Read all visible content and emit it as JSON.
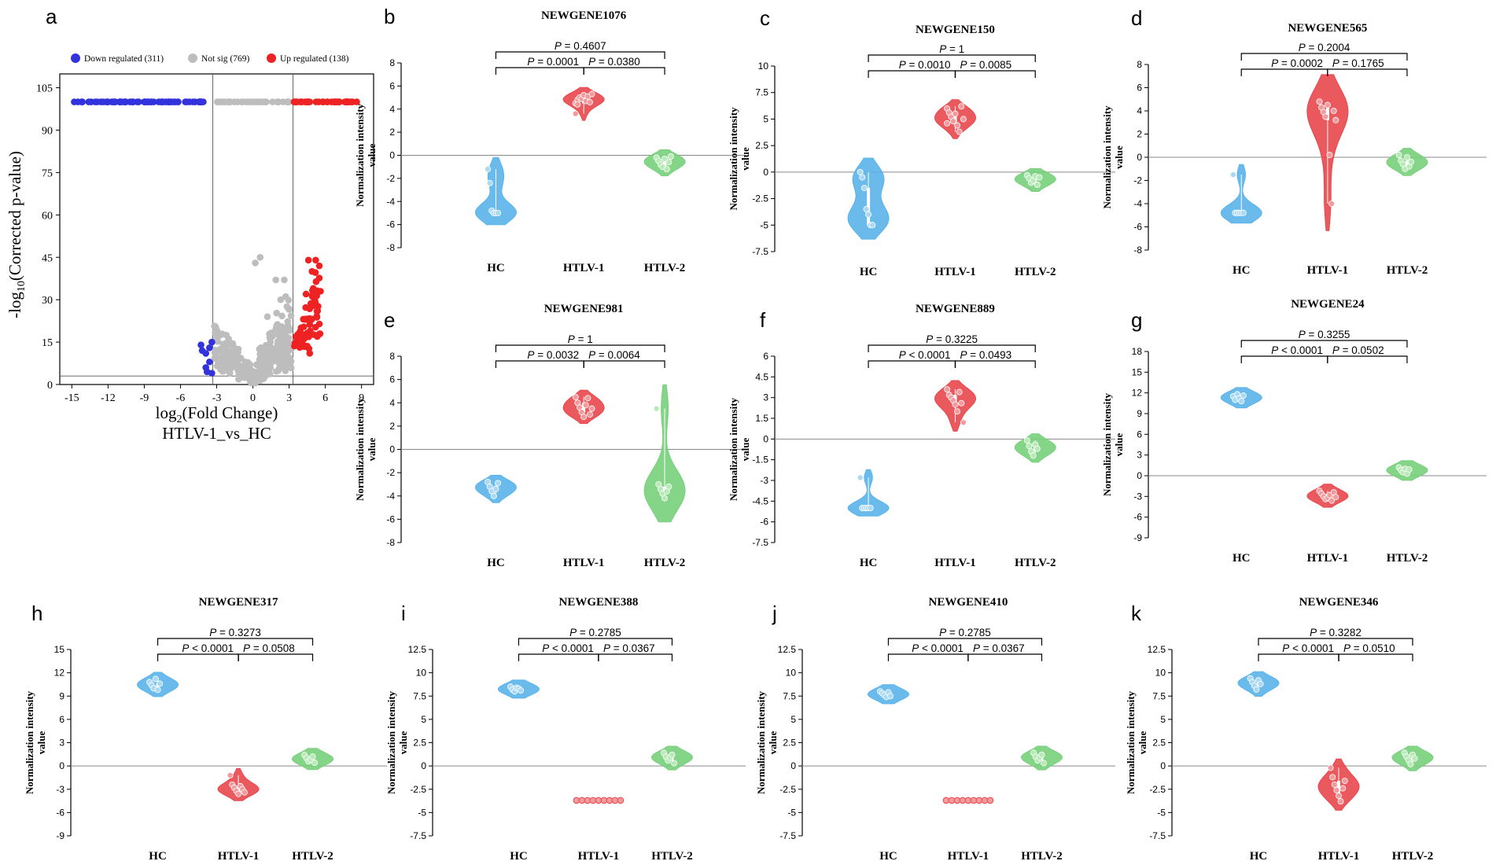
{
  "figure": {
    "volcano": {
      "panel_letter": "a",
      "chart_data": {
        "type": "scatter",
        "title": "HTLV-1_vs_HC",
        "xlabel": "log2(Fold Change)",
        "ylabel": "-log10(Corrected p-value)",
        "xlim": [
          -16,
          10
        ],
        "ylim": [
          0,
          106
        ],
        "xticks": [
          "-15",
          "-12",
          "-9",
          "-6",
          "-3",
          "0",
          "3",
          "6",
          "9"
        ],
        "yticks": [
          "0",
          "15",
          "30",
          "45",
          "60",
          "75",
          "90",
          "105"
        ],
        "fc_threshold": [
          -3.32,
          3.32
        ],
        "p_threshold": 3,
        "legend": [
          {
            "label": "Down regulated (311)",
            "color": "#3333dd"
          },
          {
            "label": "Not sig (769)",
            "color": "#bdbdbd"
          },
          {
            "label": "Up regulated (138)",
            "color": "#ee2222"
          }
        ]
      }
    },
    "violin_axis_labels": {
      "ylabel_line1": "Normalization intensity",
      "ylabel_line2": "value",
      "groups": [
        "HC",
        "HTLV-1",
        "HTLV-2"
      ]
    },
    "colors": {
      "HC": {
        "fill": "#5ab4ea",
        "point": "#a9d9f5"
      },
      "HTLV-1": {
        "fill": "#e8474c",
        "point": "#f49a9d"
      },
      "HTLV-2": {
        "fill": "#78d07c",
        "point": "#b7ebb6"
      }
    },
    "panels": [
      {
        "letter": "b",
        "chart_data": {
          "type": "violin",
          "title": "NEWGENE1076",
          "ylim": [
            -8,
            8
          ],
          "yticks": [
            "-8",
            "-6",
            "-4",
            "-2",
            "0",
            "2",
            "4",
            "6",
            "8"
          ],
          "groups": [
            {
              "name": "HC",
              "values": [
                -1.2,
                -2.4,
                -4.8,
                -5.0,
                -5.0,
                -5.0
              ]
            },
            {
              "name": "HTLV-1",
              "values": [
                4.5,
                4.8,
                5.0,
                4.9,
                5.2,
                4.7,
                5.1,
                4.6,
                5.3,
                3.6,
                4.4
              ]
            },
            {
              "name": "HTLV-2",
              "values": [
                -0.2,
                -0.5,
                -0.8,
                -1.0,
                -0.3,
                -1.2,
                -0.6,
                -0.1
              ]
            }
          ],
          "pvalues": {
            "hc_htlv1": "0.0001",
            "htlv1_htlv2": "0.0380",
            "hc_htlv2": "0.4607"
          }
        }
      },
      {
        "letter": "c",
        "chart_data": {
          "type": "violin",
          "title": "NEWGENE150",
          "ylim": [
            -7.5,
            10
          ],
          "yticks": [
            "-7.5",
            "-5",
            "-2.5",
            "0",
            "2.5",
            "5",
            "7.5",
            "10"
          ],
          "groups": [
            {
              "name": "HC",
              "values": [
                0.0,
                -0.5,
                -1.5,
                -3.5,
                -4.0,
                -5.0,
                -5.0
              ]
            },
            {
              "name": "HTLV-1",
              "values": [
                6.0,
                5.6,
                5.2,
                4.8,
                5.5,
                4.4,
                3.8,
                6.2,
                5.0,
                4.6
              ]
            },
            {
              "name": "HTLV-2",
              "values": [
                -0.3,
                -0.6,
                -1.0,
                -0.8,
                -0.4,
                -1.2,
                -0.5
              ]
            }
          ],
          "pvalues": {
            "hc_htlv1": "0.0010",
            "htlv1_htlv2": "0.0085",
            "hc_htlv2": "1"
          }
        }
      },
      {
        "letter": "d",
        "chart_data": {
          "type": "violin",
          "title": "NEWGENE565",
          "ylim": [
            -8,
            8
          ],
          "yticks": [
            "-8",
            "-6",
            "-4",
            "-2",
            "0",
            "2",
            "4",
            "6",
            "8"
          ],
          "groups": [
            {
              "name": "HC",
              "values": [
                -1.5,
                -4.8,
                -4.8,
                -4.8,
                -4.8,
                -4.8
              ]
            },
            {
              "name": "HTLV-1",
              "values": [
                4.8,
                4.3,
                3.9,
                3.5,
                4.5,
                0.2,
                -4.0,
                4.0,
                3.2
              ]
            },
            {
              "name": "HTLV-2",
              "values": [
                0.2,
                -0.3,
                -0.6,
                -1.0,
                0.0,
                -0.8,
                -0.4
              ]
            }
          ],
          "pvalues": {
            "hc_htlv1": "0.0002",
            "htlv1_htlv2": "0.1765",
            "hc_htlv2": "0.2004"
          }
        }
      },
      {
        "letter": "e",
        "chart_data": {
          "type": "violin",
          "title": "NEWGENE981",
          "ylim": [
            -8,
            8
          ],
          "yticks": [
            "-8",
            "-6",
            "-4",
            "-2",
            "0",
            "2",
            "4",
            "6",
            "8"
          ],
          "groups": [
            {
              "name": "HC",
              "values": [
                -2.8,
                -3.2,
                -3.6,
                -4.0,
                -3.4,
                -2.9
              ]
            },
            {
              "name": "HTLV-1",
              "values": [
                4.5,
                4.0,
                3.6,
                3.2,
                2.8,
                3.8,
                4.4,
                3.0,
                3.5
              ]
            },
            {
              "name": "HTLV-2",
              "values": [
                3.5,
                -3.0,
                -3.4,
                -3.8,
                -4.2,
                -3.6,
                -3.2
              ]
            }
          ],
          "pvalues": {
            "hc_htlv1": "0.0032",
            "htlv1_htlv2": "0.0064",
            "hc_htlv2": "1"
          }
        }
      },
      {
        "letter": "f",
        "chart_data": {
          "type": "violin",
          "title": "NEWGENE889",
          "ylim": [
            -7.5,
            6
          ],
          "yticks": [
            "-7.5",
            "-6",
            "-4.5",
            "-3",
            "-1.5",
            "0",
            "1.5",
            "3",
            "4.5",
            "6"
          ],
          "groups": [
            {
              "name": "HC",
              "values": [
                -2.8,
                -5.0,
                -5.0,
                -5.0,
                -5.0,
                -5.0
              ]
            },
            {
              "name": "HTLV-1",
              "values": [
                3.6,
                3.2,
                3.0,
                2.8,
                2.5,
                2.0,
                3.4,
                2.6,
                1.2
              ]
            },
            {
              "name": "HTLV-2",
              "values": [
                -0.1,
                -0.5,
                -0.9,
                -1.2,
                -0.4,
                -0.7
              ]
            }
          ],
          "pvalues": {
            "hc_htlv1": "< 0.0001",
            "htlv1_htlv2": "0.0493",
            "hc_htlv2": "0.3225"
          }
        }
      },
      {
        "letter": "g",
        "chart_data": {
          "type": "violin",
          "title": "NEWGENE24",
          "ylim": [
            -9,
            18
          ],
          "yticks": [
            "-9",
            "-6",
            "-3",
            "0",
            "3",
            "6",
            "9",
            "12",
            "15",
            "18"
          ],
          "groups": [
            {
              "name": "HC",
              "values": [
                11.5,
                11.0,
                11.8,
                11.2,
                10.8,
                11.6
              ]
            },
            {
              "name": "HTLV-1",
              "values": [
                -2.2,
                -2.6,
                -3.0,
                -3.4,
                -3.2,
                -2.8,
                -3.6,
                -2.4,
                -3.1
              ]
            },
            {
              "name": "HTLV-2",
              "values": [
                1.2,
                0.8,
                0.5,
                1.0,
                0.3,
                0.9
              ]
            }
          ],
          "pvalues": {
            "hc_htlv1": "< 0.0001",
            "htlv1_htlv2": "0.0502",
            "hc_htlv2": "0.3255"
          }
        }
      },
      {
        "letter": "h",
        "chart_data": {
          "type": "violin",
          "title": "NEWGENE317",
          "ylim": [
            -9,
            15
          ],
          "yticks": [
            "-9",
            "-6",
            "-3",
            "0",
            "3",
            "6",
            "9",
            "12",
            "15"
          ],
          "groups": [
            {
              "name": "HC",
              "values": [
                10.8,
                10.4,
                10.0,
                11.2,
                9.8,
                10.6
              ]
            },
            {
              "name": "HTLV-1",
              "values": [
                -1.2,
                -2.4,
                -2.8,
                -3.2,
                -3.6,
                -2.6,
                -3.0,
                -3.4
              ]
            },
            {
              "name": "HTLV-2",
              "values": [
                1.4,
                1.0,
                0.6,
                0.8,
                1.2,
                0.4
              ]
            }
          ],
          "pvalues": {
            "hc_htlv1": "< 0.0001",
            "htlv1_htlv2": "0.0508",
            "hc_htlv2": "0.3273"
          }
        }
      },
      {
        "letter": "i",
        "chart_data": {
          "type": "violin",
          "title": "NEWGENE388",
          "ylim": [
            -7.5,
            12.5
          ],
          "yticks": [
            "-7.5",
            "-5",
            "-2.5",
            "0",
            "2.5",
            "5",
            "7.5",
            "10",
            "12.5"
          ],
          "groups": [
            {
              "name": "HC",
              "values": [
                8.5,
                8.2,
                8.0,
                8.4,
                8.3,
                8.1
              ]
            },
            {
              "name": "HTLV-1",
              "values": [
                -3.7,
                -3.7,
                -3.7,
                -3.7,
                -3.7,
                -3.7,
                -3.7,
                -3.7,
                -3.7
              ]
            },
            {
              "name": "HTLV-2",
              "values": [
                1.4,
                1.0,
                0.6,
                0.9,
                1.2,
                0.3
              ]
            }
          ],
          "pvalues": {
            "hc_htlv1": "< 0.0001",
            "htlv1_htlv2": "0.0367",
            "hc_htlv2": "0.2785"
          }
        }
      },
      {
        "letter": "j",
        "chart_data": {
          "type": "violin",
          "title": "NEWGENE410",
          "ylim": [
            -7.5,
            12.5
          ],
          "yticks": [
            "-7.5",
            "-5",
            "-2.5",
            "0",
            "2.5",
            "5",
            "7.5",
            "10",
            "12.5"
          ],
          "groups": [
            {
              "name": "HC",
              "values": [
                8.0,
                7.8,
                7.6,
                7.4,
                7.9,
                7.5
              ]
            },
            {
              "name": "HTLV-1",
              "values": [
                -3.7,
                -3.7,
                -3.7,
                -3.7,
                -3.7,
                -3.7,
                -3.7,
                -3.7,
                -3.7
              ]
            },
            {
              "name": "HTLV-2",
              "values": [
                1.4,
                1.0,
                0.6,
                0.9,
                1.2,
                0.3
              ]
            }
          ],
          "pvalues": {
            "hc_htlv1": "< 0.0001",
            "htlv1_htlv2": "0.0367",
            "hc_htlv2": "0.2785"
          }
        }
      },
      {
        "letter": "k",
        "chart_data": {
          "type": "violin",
          "title": "NEWGENE346",
          "ylim": [
            -7.5,
            12.5
          ],
          "yticks": [
            "-7.5",
            "-5",
            "-2.5",
            "0",
            "2.5",
            "5",
            "7.5",
            "10",
            "12.5"
          ],
          "groups": [
            {
              "name": "HC",
              "values": [
                9.4,
                9.0,
                8.6,
                8.2,
                9.2,
                8.8
              ]
            },
            {
              "name": "HTLV-1",
              "values": [
                -0.2,
                -1.2,
                -2.0,
                -2.6,
                -3.2,
                -3.8,
                -2.4,
                -1.6
              ]
            },
            {
              "name": "HTLV-2",
              "values": [
                1.4,
                1.0,
                0.6,
                0.2,
                1.2,
                0.8
              ]
            }
          ],
          "pvalues": {
            "hc_htlv1": "< 0.0001",
            "htlv1_htlv2": "0.0510",
            "hc_htlv2": "0.3282"
          }
        }
      }
    ]
  }
}
